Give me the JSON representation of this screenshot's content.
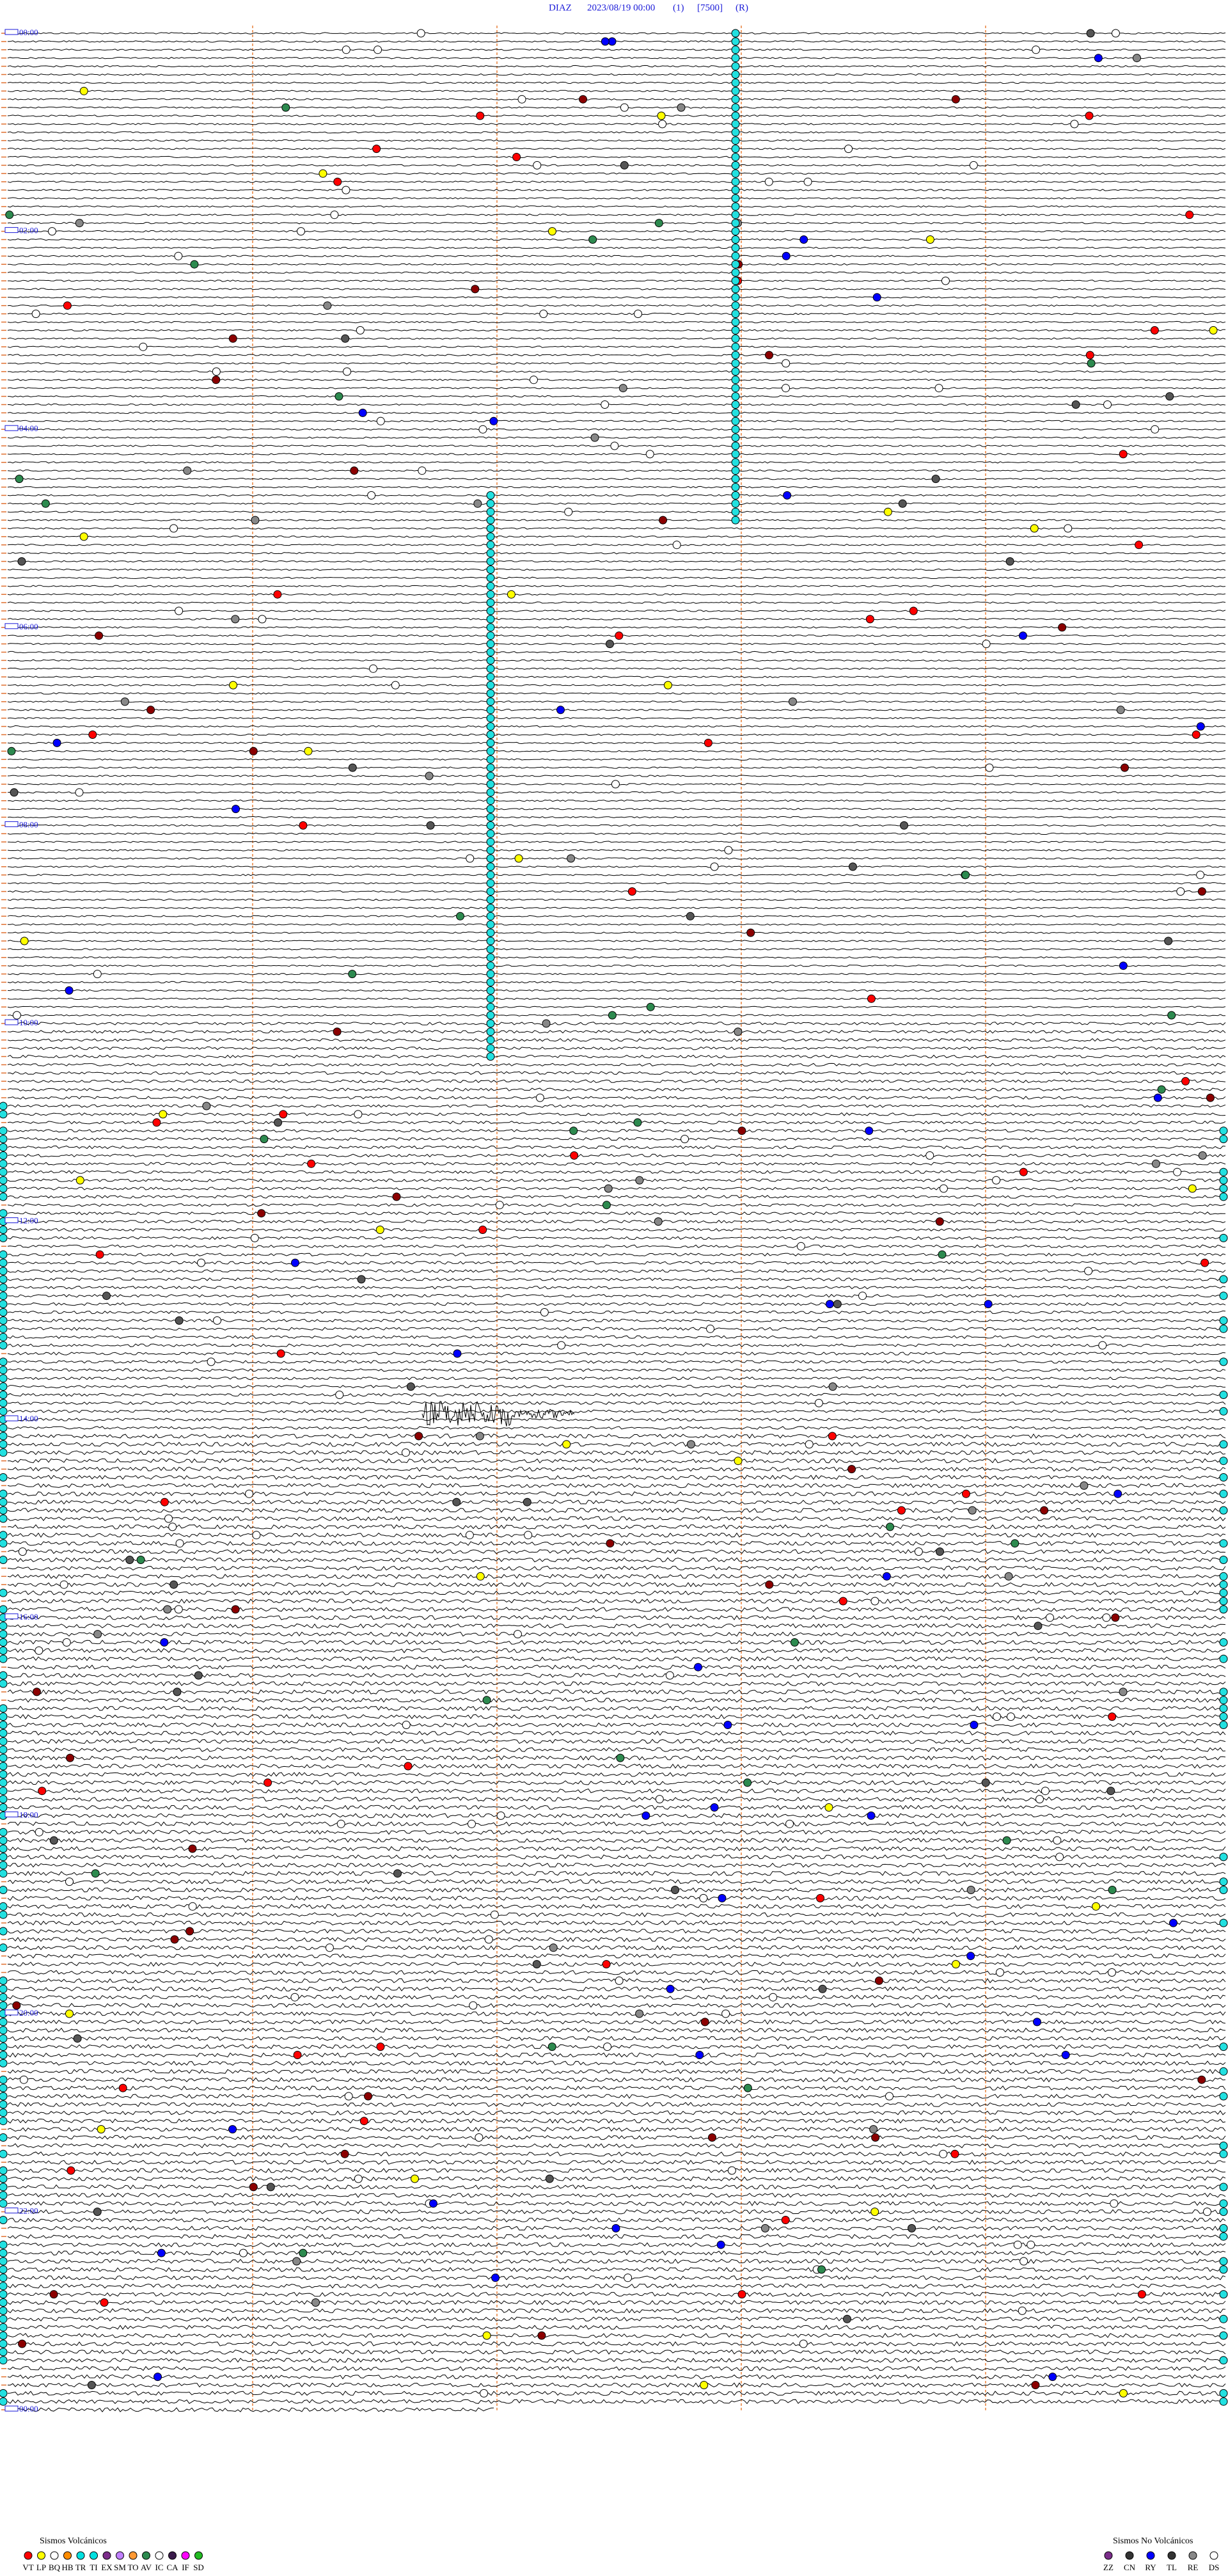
{
  "header": {
    "station": "DIAZ",
    "datetime": "2023/08/19 00:00",
    "channel": "(1)",
    "scale": "[7500]",
    "mode": "(R)"
  },
  "hour_labels": [
    "00:00",
    "02:00",
    "04:00",
    "06:00",
    "08:00",
    "10:00",
    "12:00",
    "14:00",
    "16:00",
    "18:00",
    "20:00",
    "22:00",
    "00:00"
  ],
  "legend": {
    "volcanic": {
      "title": "Sismos Volcánicos",
      "codes": [
        "VT",
        "LP",
        "BQ",
        "HB",
        "TR",
        "TI",
        "EX",
        "SM",
        "TO",
        "AV",
        "IC",
        "CA",
        "IF",
        "SD"
      ]
    },
    "non_volcanic": {
      "title": "Sismos No Volcánicos",
      "codes": [
        "ZZ",
        "CN",
        "RY",
        "TL",
        "RE",
        "DS"
      ]
    }
  }
}
